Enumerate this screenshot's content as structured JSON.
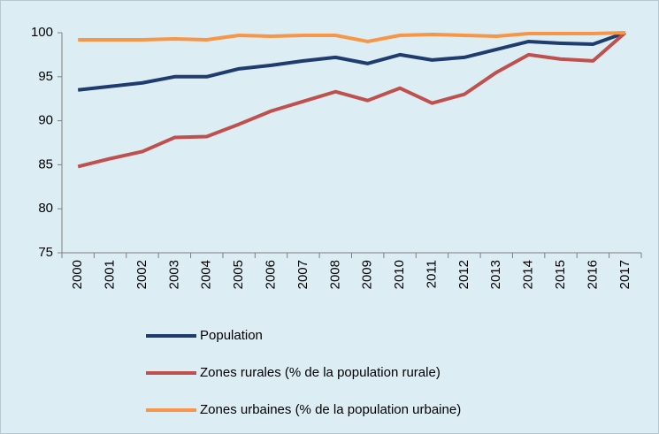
{
  "chart_data": {
    "type": "line",
    "categories": [
      "2000",
      "2001",
      "2002",
      "2003",
      "2004",
      "2005",
      "2006",
      "2007",
      "2008",
      "2009",
      "2010",
      "2011",
      "2012",
      "2013",
      "2014",
      "2015",
      "2016",
      "2017"
    ],
    "series": [
      {
        "name": "Population",
        "color": "#1f3c6e",
        "values": [
          93.5,
          93.9,
          94.3,
          95.0,
          95.0,
          95.9,
          96.3,
          96.8,
          97.2,
          96.5,
          97.5,
          96.9,
          97.2,
          98.1,
          99.0,
          98.8,
          98.7,
          100
        ]
      },
      {
        "name": "Zones rurales (% de la population rurale)",
        "color": "#c0504d",
        "values": [
          84.8,
          85.7,
          86.5,
          88.1,
          88.2,
          89.6,
          91.1,
          92.2,
          93.3,
          92.3,
          93.7,
          92.0,
          93.0,
          95.5,
          97.5,
          97.0,
          96.8,
          100
        ]
      },
      {
        "name": "Zones urbaines (% de la population urbaine)",
        "color": "#f79646",
        "values": [
          99.2,
          99.2,
          99.2,
          99.3,
          99.2,
          99.7,
          99.6,
          99.7,
          99.7,
          99.0,
          99.7,
          99.8,
          99.7,
          99.6,
          99.9,
          99.9,
          99.9,
          100
        ]
      }
    ],
    "ylim": [
      75,
      100
    ],
    "yticks": [
      75,
      80,
      85,
      90,
      95,
      100
    ],
    "grid": false,
    "legend": "bottom"
  }
}
